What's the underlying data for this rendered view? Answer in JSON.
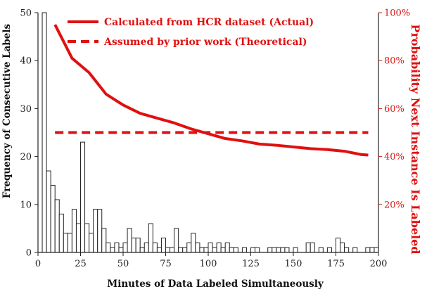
{
  "colors": {
    "actual": "#e01010",
    "theoretical": "#e01010",
    "bars_stroke": "#222222",
    "right_axis": "#e01010",
    "left_axis": "#222222"
  },
  "chart_data": {
    "type": "bar",
    "xlabel": "Minutes of Data Labeled Simultaneously",
    "ylabel": "Frequency of Consecutive Labels",
    "y2label": "Probability Next Instance Is Labeled",
    "xlim": [
      0,
      200
    ],
    "ylim": [
      0,
      50
    ],
    "y2lim": [
      0,
      1.0
    ],
    "grid": false,
    "legend_position": "top-right",
    "x_ticks": [
      0,
      25,
      50,
      75,
      100,
      125,
      150,
      175,
      200
    ],
    "y_ticks": [
      0,
      10,
      20,
      30,
      40,
      50
    ],
    "y2_ticks": [
      {
        "value": 0.2,
        "label": "20%"
      },
      {
        "value": 0.4,
        "label": "40%"
      },
      {
        "value": 0.6,
        "label": "60%"
      },
      {
        "value": 0.8,
        "label": "80%"
      },
      {
        "value": 1.0,
        "label": "100%"
      }
    ],
    "histogram": {
      "bin_width": 2.5,
      "bin_starts": [
        2.5,
        5,
        7.5,
        10,
        12.5,
        15,
        17.5,
        20,
        22.5,
        25,
        27.5,
        30,
        32.5,
        35,
        37.5,
        40,
        42.5,
        45,
        47.5,
        50,
        52.5,
        55,
        57.5,
        60,
        62.5,
        65,
        67.5,
        70,
        72.5,
        75,
        77.5,
        80,
        82.5,
        85,
        87.5,
        90,
        92.5,
        95,
        97.5,
        100,
        102.5,
        105,
        107.5,
        110,
        112.5,
        115,
        117.5,
        120,
        122.5,
        125,
        127.5,
        130,
        132.5,
        135,
        137.5,
        140,
        142.5,
        145,
        147.5,
        150,
        152.5,
        155,
        157.5,
        160,
        162.5,
        165,
        167.5,
        170,
        172.5,
        175,
        177.5,
        180,
        182.5,
        185,
        187.5,
        190,
        192.5,
        195,
        197.5
      ],
      "values": [
        50,
        17,
        14,
        11,
        8,
        4,
        4,
        9,
        6,
        23,
        6,
        4,
        9,
        9,
        5,
        2,
        1,
        2,
        1,
        2,
        5,
        3,
        3,
        1,
        2,
        6,
        2,
        1,
        3,
        1,
        1,
        5,
        1,
        1,
        2,
        4,
        2,
        1,
        1,
        2,
        1,
        2,
        1,
        2,
        1,
        1,
        0,
        1,
        0,
        1,
        1,
        0,
        0,
        1,
        1,
        1,
        1,
        1,
        0,
        1,
        0,
        0,
        2,
        2,
        0,
        1,
        0,
        1,
        0,
        3,
        2,
        1,
        0,
        1,
        0,
        0,
        1,
        1,
        1
      ]
    },
    "series": [
      {
        "name": "Calculated from HCR dataset (Actual)",
        "style": "solid",
        "axis": "right",
        "x": [
          10,
          20,
          30,
          40,
          50,
          60,
          70,
          80,
          90,
          100,
          110,
          120,
          130,
          140,
          150,
          160,
          170,
          180,
          190,
          194
        ],
        "values": [
          0.95,
          0.81,
          0.75,
          0.66,
          0.615,
          0.58,
          0.56,
          0.54,
          0.515,
          0.495,
          0.475,
          0.465,
          0.452,
          0.447,
          0.44,
          0.433,
          0.429,
          0.422,
          0.408,
          0.406
        ]
      },
      {
        "name": "Assumed by prior work (Theoretical)",
        "style": "dashed",
        "axis": "right",
        "x": [
          10,
          194
        ],
        "values": [
          0.5,
          0.5
        ]
      }
    ]
  }
}
